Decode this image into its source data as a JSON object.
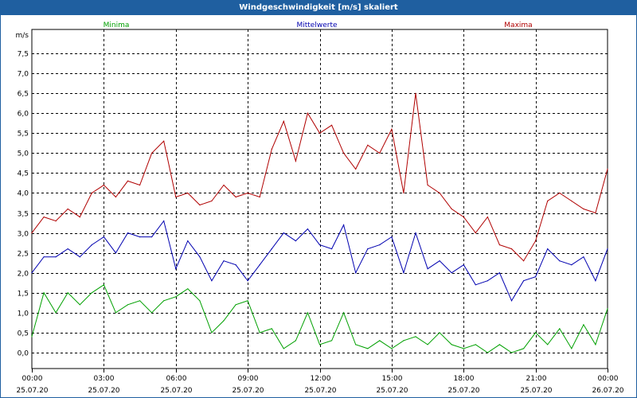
{
  "window": {
    "title": "Windgeschwindigkeit [m/s] skaliert"
  },
  "chart_data": {
    "type": "line",
    "title": "Windgeschwindigkeit [m/s] skaliert",
    "ylabel": "m/s",
    "ylim": [
      -0.4,
      8.1
    ],
    "yticks": [
      "0,0",
      "0,5",
      "1,0",
      "1,5",
      "2,0",
      "2,5",
      "3,0",
      "3,5",
      "4,0",
      "4,5",
      "5,0",
      "5,5",
      "6,0",
      "6,5",
      "7,0",
      "7,5"
    ],
    "xlim_hours": [
      0,
      24
    ],
    "xticks": [
      {
        "time": "00:00",
        "date": "25.07.20"
      },
      {
        "time": "03:00",
        "date": "25.07.20"
      },
      {
        "time": "06:00",
        "date": "25.07.20"
      },
      {
        "time": "09:00",
        "date": "25.07.20"
      },
      {
        "time": "12:00",
        "date": "25.07.20"
      },
      {
        "time": "15:00",
        "date": "25.07.20"
      },
      {
        "time": "18:00",
        "date": "25.07.20"
      },
      {
        "time": "21:00",
        "date": "25.07.20"
      },
      {
        "time": "00:00",
        "date": "26.07.20"
      }
    ],
    "grid": true,
    "legend_position": "top",
    "x_hours": [
      0,
      0.5,
      1,
      1.5,
      2,
      2.5,
      3,
      3.5,
      4,
      4.5,
      5,
      5.5,
      6,
      6.5,
      7,
      7.5,
      8,
      8.5,
      9,
      9.5,
      10,
      10.5,
      11,
      11.5,
      12,
      12.5,
      13,
      13.5,
      14,
      14.5,
      15,
      15.5,
      16,
      16.5,
      17,
      17.5,
      18,
      18.5,
      19,
      19.5,
      20,
      20.5,
      21,
      21.5,
      22,
      22.5,
      23,
      23.5,
      24
    ],
    "series": [
      {
        "name": "Minima",
        "color": "#00a000",
        "values": [
          0.4,
          1.5,
          1.0,
          1.5,
          1.2,
          1.5,
          1.7,
          1.0,
          1.2,
          1.3,
          1.0,
          1.3,
          1.4,
          1.6,
          1.3,
          0.5,
          0.8,
          1.2,
          1.3,
          0.5,
          0.6,
          0.1,
          0.3,
          1.0,
          0.2,
          0.3,
          1.0,
          0.2,
          0.1,
          0.3,
          0.1,
          0.3,
          0.4,
          0.2,
          0.5,
          0.2,
          0.1,
          0.2,
          0.0,
          0.2,
          0.0,
          0.1,
          0.5,
          0.2,
          0.6,
          0.1,
          0.7,
          0.2,
          1.1
        ]
      },
      {
        "name": "Mittelwerte",
        "color": "#0000b0",
        "values": [
          2.0,
          2.4,
          2.4,
          2.6,
          2.4,
          2.7,
          2.9,
          2.5,
          3.0,
          2.9,
          2.9,
          3.3,
          2.1,
          2.8,
          2.4,
          1.8,
          2.3,
          2.2,
          1.8,
          2.2,
          2.6,
          3.0,
          2.8,
          3.1,
          2.7,
          2.6,
          3.2,
          2.0,
          2.6,
          2.7,
          2.9,
          2.0,
          3.0,
          2.1,
          2.3,
          2.0,
          2.2,
          1.7,
          1.8,
          2.0,
          1.3,
          1.8,
          1.9,
          2.6,
          2.3,
          2.2,
          2.4,
          1.8,
          2.6
        ]
      },
      {
        "name": "Maxima",
        "color": "#b00000",
        "values": [
          3.0,
          3.4,
          3.3,
          3.6,
          3.4,
          4.0,
          4.2,
          3.9,
          4.3,
          4.2,
          5.0,
          5.3,
          3.9,
          4.0,
          3.7,
          3.8,
          4.2,
          3.9,
          4.0,
          3.9,
          5.1,
          5.8,
          4.8,
          6.0,
          5.5,
          5.7,
          5.0,
          4.6,
          5.2,
          5.0,
          5.6,
          4.0,
          6.5,
          4.2,
          4.0,
          3.6,
          3.4,
          3.0,
          3.4,
          2.7,
          2.6,
          2.3,
          2.8,
          3.8,
          4.0,
          3.8,
          3.6,
          3.5,
          4.6
        ]
      }
    ]
  }
}
